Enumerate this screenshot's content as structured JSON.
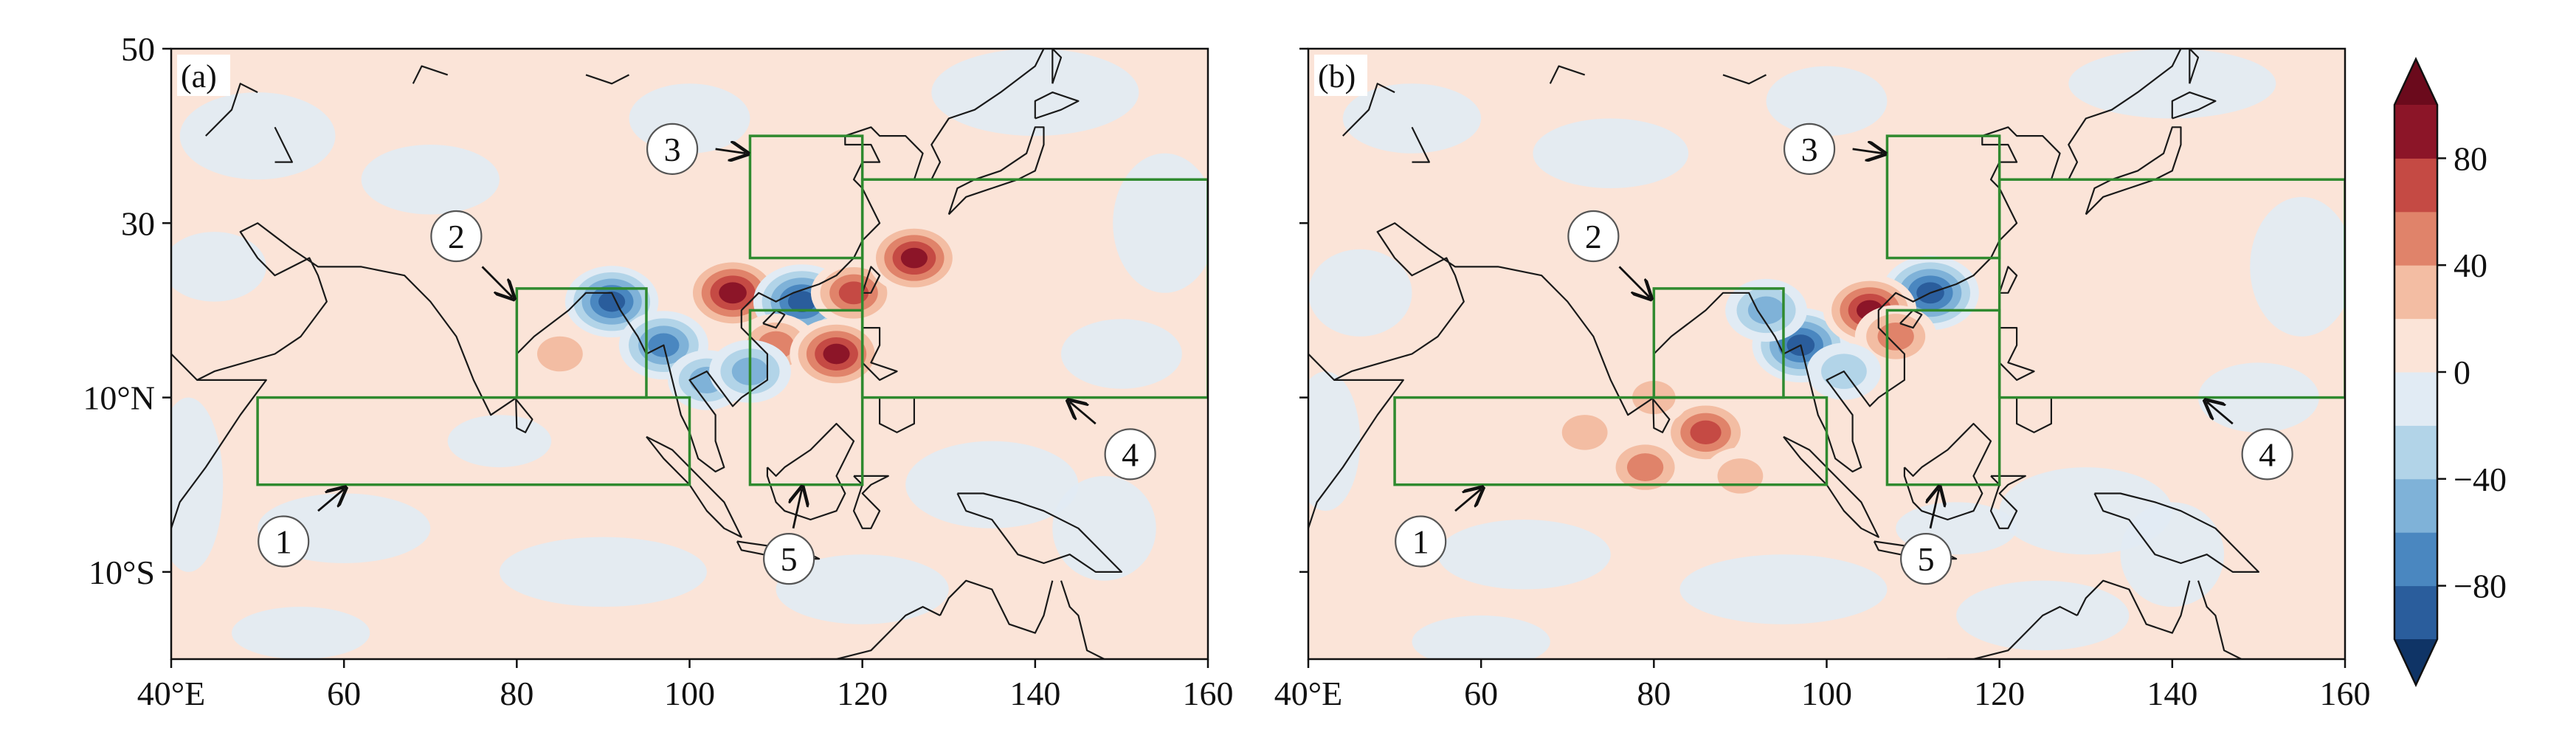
{
  "chart_data": [
    {
      "type": "heatmap",
      "panel_label": "(a)",
      "x_range": [
        40,
        160
      ],
      "y_range": [
        -20,
        50
      ],
      "x_ticks": [
        40,
        60,
        80,
        100,
        120,
        140,
        160
      ],
      "x_tick_labels": [
        "40°E",
        "60",
        "80",
        "100",
        "120",
        "140",
        "160"
      ],
      "y_ticks": [
        50,
        30,
        10,
        -10
      ],
      "y_tick_labels": [
        "50",
        "30",
        "10°N",
        "10°S"
      ],
      "background_value": 2,
      "regions": [
        {
          "number": "1",
          "lon": [
            50,
            100
          ],
          "lat": [
            0,
            10
          ]
        },
        {
          "number": "2",
          "lon": [
            80,
            95
          ],
          "lat": [
            10,
            22.5
          ]
        },
        {
          "number": "3",
          "lon": [
            107,
            120
          ],
          "lat": [
            26,
            40
          ]
        },
        {
          "number": "4",
          "lon": [
            120,
            160
          ],
          "lat": [
            10,
            35
          ]
        },
        {
          "number": "5",
          "lon": [
            107,
            120
          ],
          "lat": [
            0,
            20
          ]
        }
      ],
      "anomalies": [
        {
          "lon": 91,
          "lat": 21,
          "value": -90
        },
        {
          "lon": 97,
          "lat": 16,
          "value": -80
        },
        {
          "lon": 102,
          "lat": 12,
          "value": -50
        },
        {
          "lon": 105,
          "lat": 22,
          "value": 100
        },
        {
          "lon": 113,
          "lat": 21,
          "value": -100
        },
        {
          "lon": 110,
          "lat": 16,
          "value": 60
        },
        {
          "lon": 117,
          "lat": 15,
          "value": 90
        },
        {
          "lon": 119,
          "lat": 22,
          "value": 70
        },
        {
          "lon": 126,
          "lat": 26,
          "value": 90
        },
        {
          "lon": 85,
          "lat": 15,
          "value": 40
        },
        {
          "lon": 107,
          "lat": 13,
          "value": -60
        }
      ]
    },
    {
      "type": "heatmap",
      "panel_label": "(b)",
      "x_range": [
        40,
        160
      ],
      "y_range": [
        -20,
        50
      ],
      "x_ticks": [
        40,
        60,
        80,
        100,
        120,
        140,
        160
      ],
      "x_tick_labels": [
        "40°E",
        "60",
        "80",
        "100",
        "120",
        "140",
        "160"
      ],
      "y_ticks": [
        50,
        30,
        10,
        -10
      ],
      "y_tick_labels": [
        "",
        "",
        "",
        ""
      ],
      "background_value": 2,
      "regions": [
        {
          "number": "1",
          "lon": [
            50,
            100
          ],
          "lat": [
            0,
            10
          ]
        },
        {
          "number": "2",
          "lon": [
            80,
            95
          ],
          "lat": [
            10,
            22.5
          ]
        },
        {
          "number": "3",
          "lon": [
            107,
            120
          ],
          "lat": [
            26,
            40
          ]
        },
        {
          "number": "4",
          "lon": [
            120,
            160
          ],
          "lat": [
            10,
            35
          ]
        },
        {
          "number": "5",
          "lon": [
            107,
            120
          ],
          "lat": [
            0,
            20
          ]
        }
      ],
      "anomalies": [
        {
          "lon": 97,
          "lat": 16,
          "value": -100
        },
        {
          "lon": 93,
          "lat": 20,
          "value": -60
        },
        {
          "lon": 112,
          "lat": 22,
          "value": -100
        },
        {
          "lon": 105,
          "lat": 20,
          "value": 90
        },
        {
          "lon": 108,
          "lat": 17,
          "value": 60
        },
        {
          "lon": 102,
          "lat": 13,
          "value": -40
        },
        {
          "lon": 86,
          "lat": 6,
          "value": 80
        },
        {
          "lon": 79,
          "lat": 2,
          "value": 60
        },
        {
          "lon": 72,
          "lat": 6,
          "value": 40
        },
        {
          "lon": 90,
          "lat": 1,
          "value": 40
        },
        {
          "lon": 80,
          "lat": 10,
          "value": 30
        }
      ]
    }
  ],
  "colorbar": {
    "levels": [
      -100,
      -80,
      -60,
      -40,
      -20,
      0,
      20,
      40,
      60,
      80,
      100
    ],
    "tick_values": [
      80,
      40,
      0,
      -40,
      -80
    ],
    "tick_labels": [
      "80",
      "40",
      "0",
      "−40",
      "−80"
    ],
    "colors": [
      "#2a5d9c",
      "#4a87c0",
      "#7fb2d8",
      "#b2d4e8",
      "#e1ebf4",
      "#fbe4d8",
      "#f3bda3",
      "#e0836a",
      "#c54a44",
      "#8c1528"
    ],
    "extend_low_color": "#0f3466",
    "extend_high_color": "#6b0a1c"
  },
  "colors": {
    "box": "#2f8a2f",
    "coast": "#1a1a1a"
  }
}
